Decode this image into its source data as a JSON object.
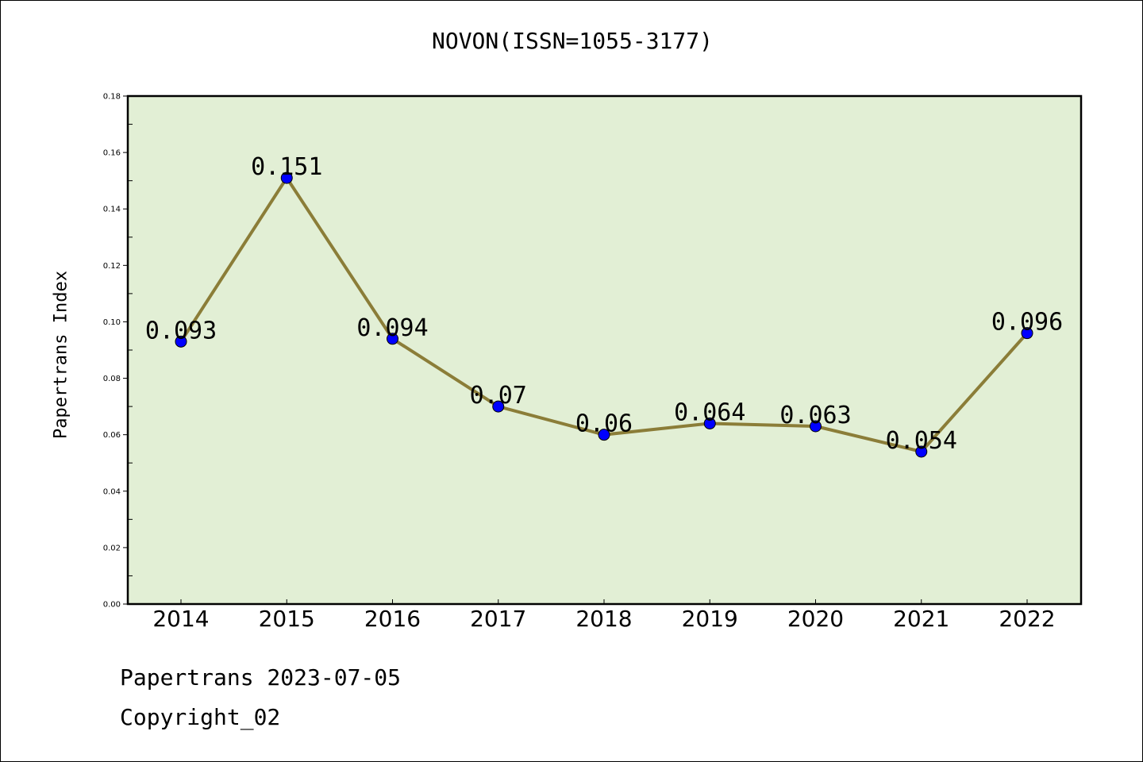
{
  "chart_data": {
    "type": "line",
    "title": "NOVON(ISSN=1055-3177)",
    "xlabel": "",
    "ylabel": "Papertrans Index",
    "categories": [
      "2014",
      "2015",
      "2016",
      "2017",
      "2018",
      "2019",
      "2020",
      "2021",
      "2022"
    ],
    "values": [
      0.093,
      0.151,
      0.094,
      0.07,
      0.06,
      0.064,
      0.063,
      0.054,
      0.096
    ],
    "data_labels": [
      "0.093",
      "0.151",
      "0.094",
      "0.07",
      "0.06",
      "0.064",
      "0.063",
      "0.054",
      "0.096"
    ],
    "ylim": [
      0,
      0.18
    ],
    "yticks": [
      "0.00",
      "0.02",
      "0.04",
      "0.06",
      "0.08",
      "0.10",
      "0.12",
      "0.14",
      "0.16",
      "0.18"
    ],
    "grid": false,
    "colors": {
      "plot_background": "#e2efd5",
      "line": "#8b7d38",
      "marker": "#0000ff"
    }
  },
  "footer": {
    "line1": "Papertrans 2023-07-05",
    "line2": "Copyright_02"
  }
}
